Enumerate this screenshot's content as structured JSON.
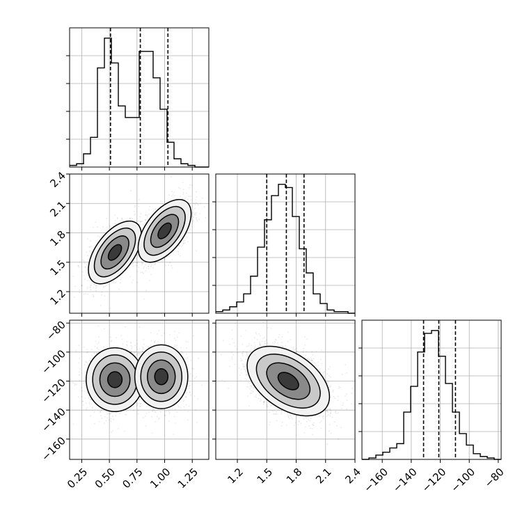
{
  "chart_data": {
    "type": "corner",
    "parameters": [
      {
        "name": "",
        "range": [
          0.14,
          1.4
        ],
        "ticks": [
          0.25,
          0.5,
          0.75,
          1.0,
          1.25
        ],
        "tick_labels": [
          "0.25",
          "0.50",
          "0.75",
          "1.00",
          "1.25"
        ]
      },
      {
        "name": "",
        "range": [
          0.98,
          2.4
        ],
        "ticks": [
          1.2,
          1.5,
          1.8,
          2.1,
          2.4
        ],
        "tick_labels": [
          "1.2",
          "1.5",
          "1.8",
          "2.1",
          "2.4"
        ]
      },
      {
        "name": "",
        "range": [
          -174,
          -78
        ],
        "ticks": [
          -160,
          -140,
          -120,
          -100,
          -80
        ],
        "tick_labels": [
          "−160",
          "−140",
          "−120",
          "−100",
          "−80"
        ]
      }
    ],
    "histograms": [
      {
        "param": 0,
        "bin_lo": 0.14,
        "bin_width": 0.063,
        "counts": [
          1,
          2,
          8,
          18,
          60,
          78,
          63,
          37,
          30,
          30,
          70,
          70,
          54,
          35,
          15,
          5,
          2,
          1,
          0,
          0
        ],
        "quantiles": [
          0.51,
          0.78,
          1.03
        ]
      },
      {
        "param": 1,
        "bin_lo": 0.98,
        "bin_width": 0.071,
        "counts": [
          1,
          2,
          4,
          7,
          12,
          23,
          41,
          58,
          73,
          80,
          78,
          60,
          40,
          25,
          12,
          6,
          2,
          1,
          1,
          0
        ],
        "quantiles": [
          1.5,
          1.7,
          1.88
        ]
      },
      {
        "param": 2,
        "bin_lo": -174,
        "bin_width": 4.8,
        "counts": [
          0,
          1,
          3,
          5,
          8,
          11,
          33,
          51,
          75,
          88,
          90,
          72,
          53,
          33,
          18,
          10,
          4,
          2,
          1,
          0
        ],
        "quantiles": [
          -131.5,
          -121.0,
          -109.5
        ]
      }
    ],
    "joint_panels": [
      {
        "x_param": 0,
        "y_param": 1,
        "modes": [
          [
            0.55,
            1.6
          ],
          [
            1.0,
            1.82
          ]
        ]
      },
      {
        "x_param": 0,
        "y_param": 2,
        "modes": [
          [
            0.55,
            -119
          ],
          [
            0.95,
            -117
          ]
        ]
      },
      {
        "x_param": 1,
        "y_param": 2,
        "modes": [
          [
            1.72,
            -120
          ]
        ],
        "correlation": "negative"
      }
    ],
    "grid": true
  }
}
